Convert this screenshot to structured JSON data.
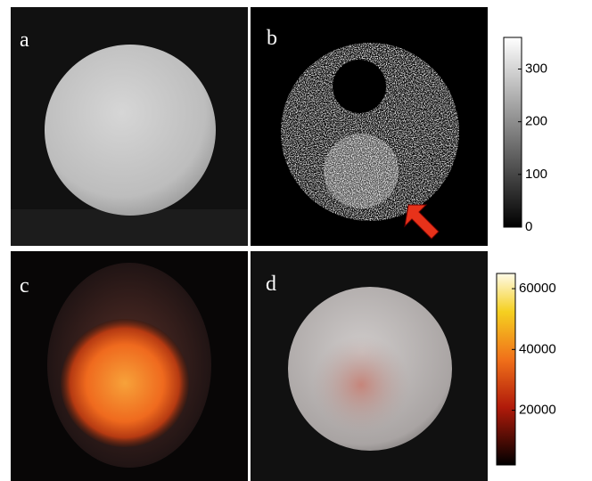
{
  "panels": [
    {
      "label": "a"
    },
    {
      "label": "b"
    },
    {
      "label": "c"
    },
    {
      "label": "d"
    }
  ],
  "colorbars": [
    {
      "lim": [
        0,
        360
      ],
      "ticks": [
        0,
        100,
        200,
        300
      ]
    },
    {
      "lim": [
        2000,
        65000
      ],
      "ticks": [
        20000,
        40000,
        60000
      ]
    }
  ]
}
